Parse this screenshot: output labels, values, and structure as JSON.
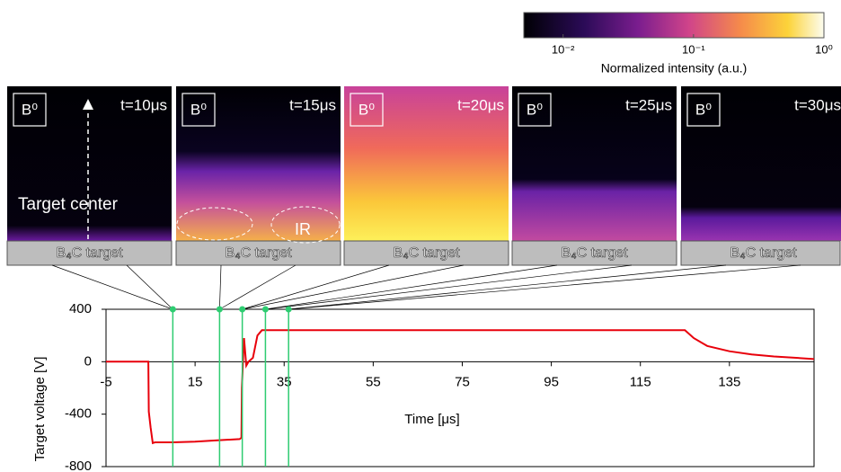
{
  "colorbar": {
    "label": "Normalized intensity (a.u.)",
    "lim": [
      0.005,
      1
    ],
    "ticks": [
      {
        "value": 0.01,
        "label": "10⁻²"
      },
      {
        "value": 0.1,
        "label": "10⁻¹"
      },
      {
        "value": 1,
        "label": "10⁰"
      }
    ]
  },
  "panels": [
    {
      "species": "B⁰",
      "time": "t=10μs",
      "target": "B₄C target",
      "annotation": "Target center"
    },
    {
      "species": "B⁰",
      "time": "t=15μs",
      "target": "B₄C target",
      "annotation": "IR"
    },
    {
      "species": "B⁰",
      "time": "t=20μs",
      "target": "B₄C target"
    },
    {
      "species": "B⁰",
      "time": "t=25μs",
      "target": "B₄C target"
    },
    {
      "species": "B⁰",
      "time": "t=30μs",
      "target": "B₄C target"
    }
  ],
  "chart_data": {
    "type": "line",
    "x_label": "Time [μs]",
    "y_label": "Target voltage [V]",
    "x": [
      -5,
      4.5,
      4.6,
      5.0,
      5.5,
      6.0,
      10,
      15,
      20,
      25,
      25.4,
      25.5,
      26,
      26.5,
      27,
      28,
      29,
      30,
      50,
      100,
      125,
      127,
      130,
      135,
      140,
      145,
      150,
      154
    ],
    "series": [
      {
        "color": "#e8000b",
        "values": [
          0,
          0,
          -380,
          -500,
          -620,
          -615,
          -615,
          -610,
          -600,
          -590,
          -580,
          -200,
          180,
          -30,
          0,
          30,
          200,
          240,
          240,
          240,
          240,
          180,
          120,
          80,
          55,
          40,
          30,
          20
        ]
      }
    ],
    "markers": [
      10,
      20.5,
      25.6,
      30.8,
      36
    ],
    "marker_color": "#2ecc71",
    "xlim": [
      -5,
      154
    ],
    "ylim": [
      -800,
      400
    ],
    "xticks": [
      -5,
      15,
      35,
      55,
      75,
      95,
      115,
      135
    ],
    "yticks": [
      -800,
      -400,
      0,
      400
    ]
  }
}
